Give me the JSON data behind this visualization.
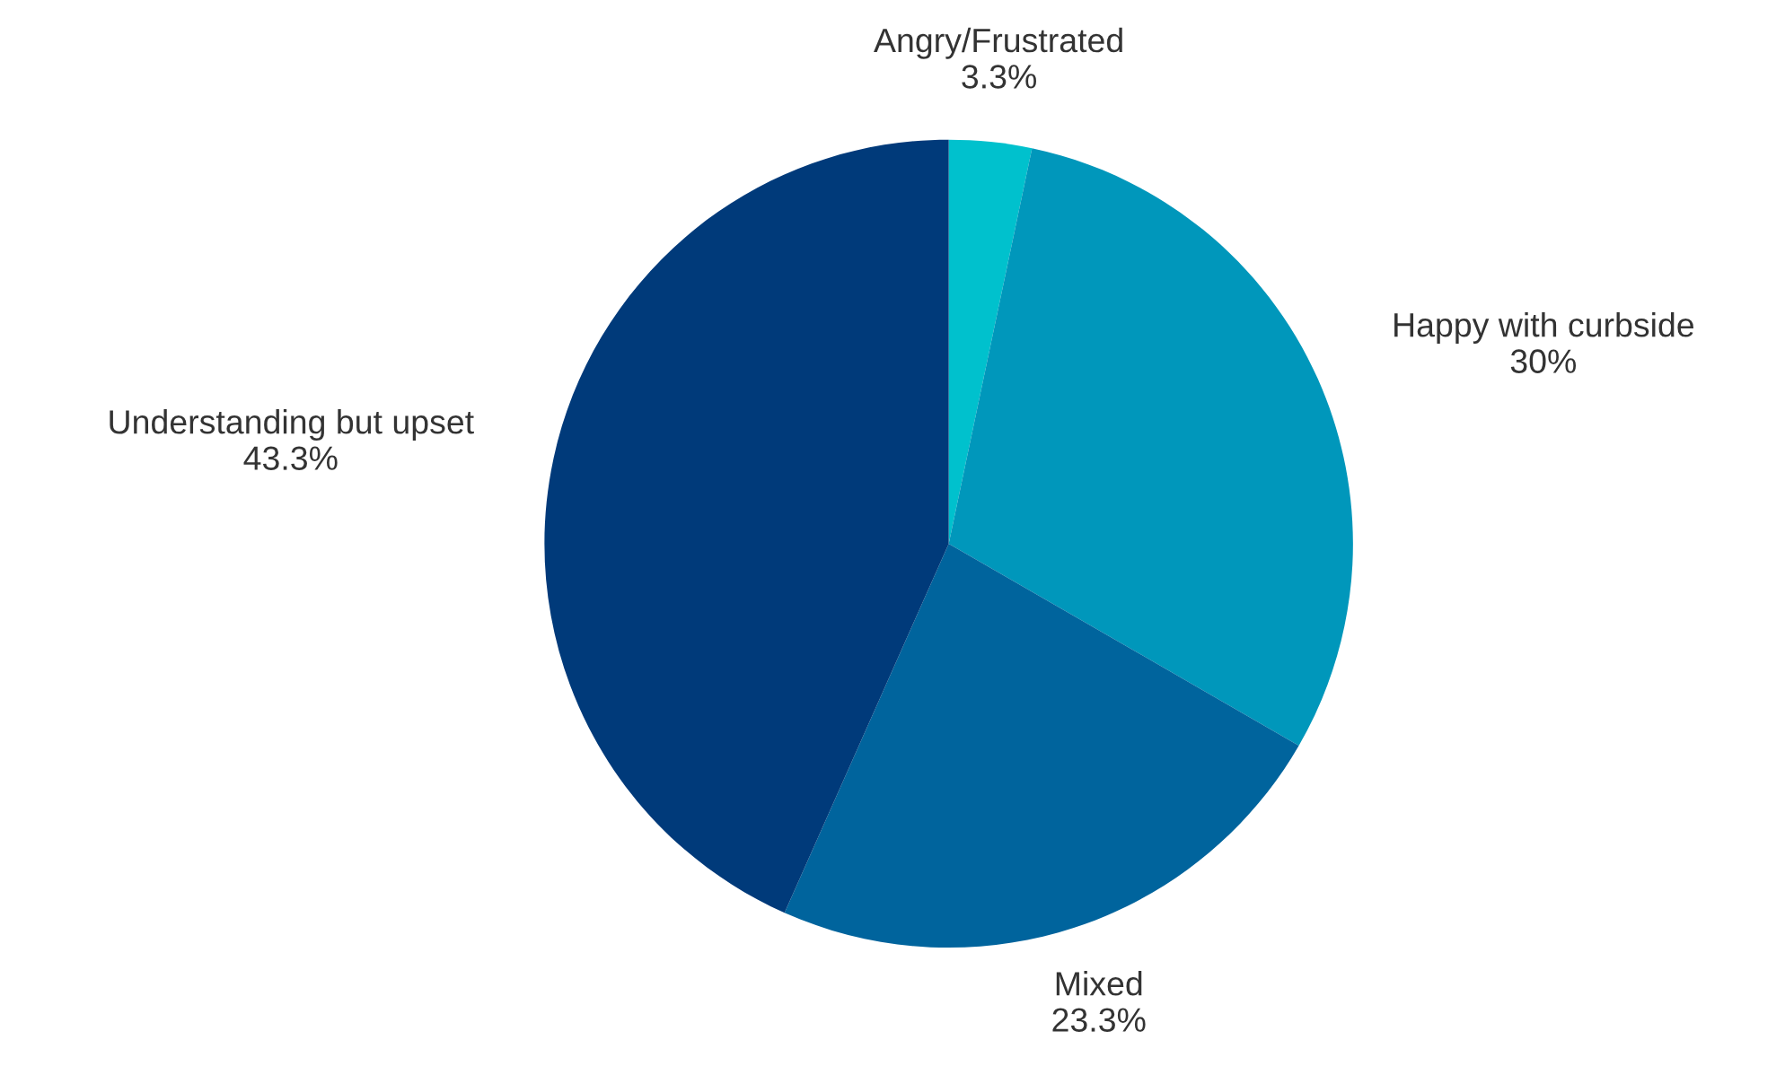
{
  "chart_data": {
    "type": "pie",
    "categories": [
      "Angry/Frustrated",
      "Happy with curbside",
      "Mixed",
      "Understanding but upset"
    ],
    "values": [
      3.3,
      30,
      23.3,
      43.3
    ],
    "value_labels": [
      "3.3%",
      "30%",
      "23.3%",
      "43.3%"
    ],
    "colors": [
      "#00c1cd",
      "#0097bb",
      "#00649d",
      "#003a7a"
    ]
  }
}
